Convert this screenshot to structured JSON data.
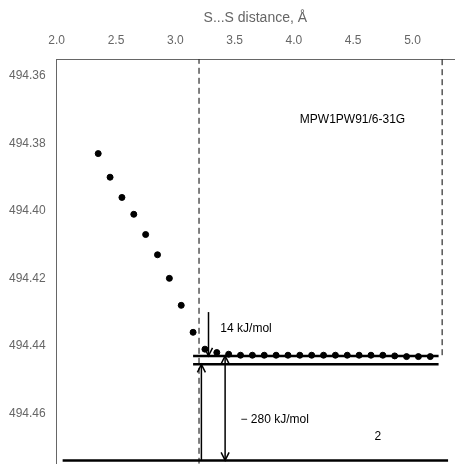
{
  "chart_data": {
    "type": "scatter",
    "xlabel": "S...S distance, Å",
    "xlim": [
      2.0,
      5.35
    ],
    "ylim": [
      494.475,
      494.355
    ],
    "xticks": [
      {
        "value": 2.0,
        "label": "2.0"
      },
      2.5,
      {
        "value": 3.0,
        "label": "3.0"
      },
      3.5,
      {
        "value": 4.0,
        "label": "4.0"
      },
      4.5,
      {
        "value": 5.0,
        "label": "5.0"
      }
    ],
    "yticks": [
      494.36,
      494.38,
      {
        "value": 494.4,
        "label": "494.40"
      },
      494.42,
      494.44,
      494.46
    ],
    "grid": false,
    "series": [
      {
        "type": "scatter",
        "color": "black",
        "x": [
          2.35,
          2.45,
          2.55,
          2.65,
          2.75,
          2.85,
          2.95,
          3.05,
          3.15,
          3.25,
          3.35,
          3.45,
          3.55,
          3.65,
          3.75,
          3.85,
          3.95,
          4.05,
          4.15,
          4.25,
          4.35,
          4.45,
          4.55,
          4.65,
          4.75,
          4.85,
          4.95,
          5.05,
          5.15
        ],
        "values": [
          494.383,
          494.39,
          494.396,
          494.401,
          494.407,
          494.413,
          494.42,
          494.428,
          494.436,
          494.441,
          494.442,
          494.4425,
          494.4428,
          494.4428,
          494.4428,
          494.4428,
          494.4428,
          494.4428,
          494.4428,
          494.4428,
          494.4428,
          494.4428,
          494.4428,
          494.4428,
          494.4428,
          494.443,
          494.4432,
          494.4432,
          494.4432
        ]
      },
      {
        "type": "line",
        "line_style": "dashed",
        "color": "black",
        "x": [
          3.2,
          3.2
        ],
        "values": [
          494.475,
          494.355
        ]
      },
      {
        "type": "line",
        "line_style": "dashed",
        "color": "black",
        "x": [
          5.25,
          5.25
        ],
        "values": [
          494.355,
          494.443
        ]
      },
      {
        "type": "line",
        "line_style": "solid",
        "color": "black",
        "x": [
          3.15,
          5.22
        ],
        "values": [
          494.443,
          494.443
        ]
      },
      {
        "type": "line",
        "line_style": "solid",
        "color": "black",
        "x": [
          3.15,
          5.22
        ],
        "values": [
          494.4455,
          494.4455
        ]
      },
      {
        "type": "line",
        "line_style": "solid",
        "color": "black",
        "x": [
          2.05,
          5.3
        ],
        "values": [
          494.474,
          494.474
        ]
      }
    ],
    "arrows": [
      {
        "x": 3.28,
        "from": 494.43,
        "to": 494.443,
        "marker": "arrow"
      },
      {
        "x": 3.22,
        "from": 494.474,
        "to": 494.4455,
        "marker": "arrow"
      },
      {
        "x": 3.42,
        "from": 494.474,
        "to": 494.443,
        "marker": "double_arrow"
      }
    ],
    "annotations": [
      {
        "text": "14 kJ/mol",
        "x": 3.38,
        "y": 494.435
      },
      {
        "text": "− 280 kJ/mol",
        "x": 3.55,
        "y": 494.462
      },
      {
        "text": "2",
        "x": 4.68,
        "y": 494.467
      },
      {
        "text": "MPW1PW91/6-31G",
        "x": 4.05,
        "y": 494.373
      }
    ]
  }
}
